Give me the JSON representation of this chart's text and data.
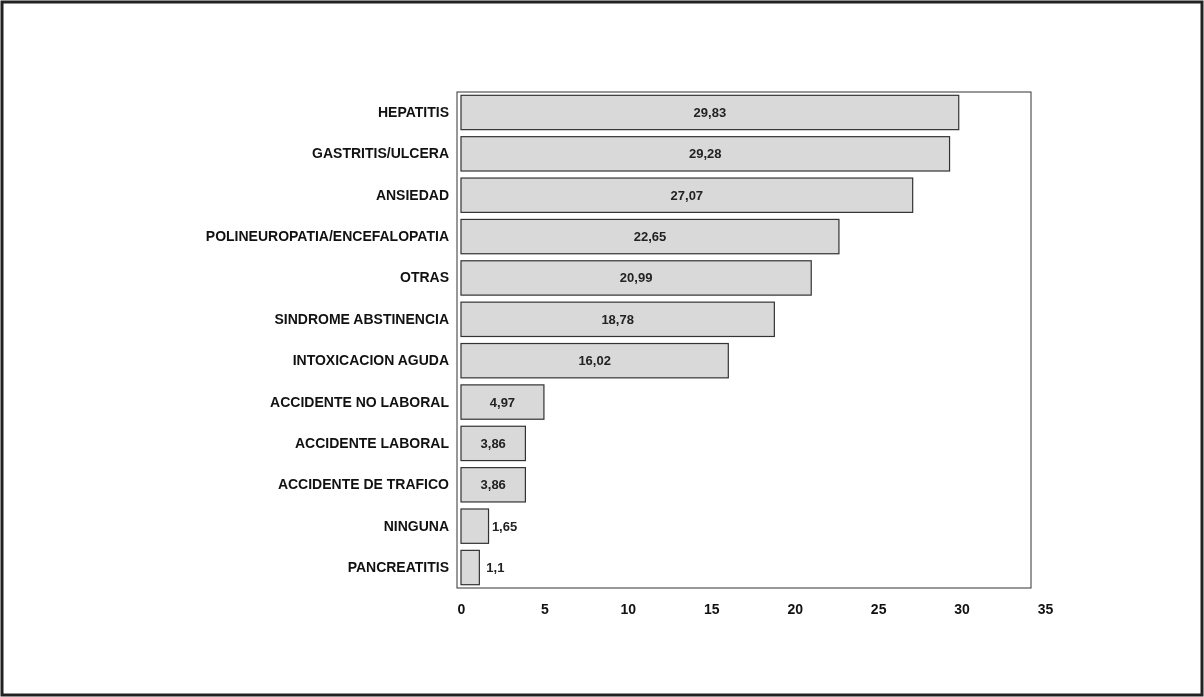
{
  "chart_data": {
    "type": "bar",
    "orientation": "horizontal",
    "categories": [
      "HEPATITIS",
      "GASTRITIS/ULCERA",
      "ANSIEDAD",
      "POLINEUROPATIA/ENCEFALOPATIA",
      "OTRAS",
      "SINDROME ABSTINENCIA",
      "INTOXICACION AGUDA",
      "ACCIDENTE NO LABORAL",
      "ACCIDENTE LABORAL",
      "ACCIDENTE DE TRAFICO",
      "NINGUNA",
      "PANCREATITIS"
    ],
    "values": [
      29.83,
      29.28,
      27.07,
      22.65,
      20.99,
      18.78,
      16.02,
      4.97,
      3.86,
      3.86,
      1.65,
      1.1
    ],
    "value_labels": [
      "29,83",
      "29,28",
      "27,07",
      "22,65",
      "20,99",
      "18,78",
      "16,02",
      "4,97",
      "3,86",
      "3,86",
      "1,65",
      "1,1"
    ],
    "color": "#d9d9d9",
    "xlim": [
      0,
      35
    ],
    "xticks": [
      0,
      5,
      10,
      15,
      20,
      25,
      30,
      35
    ],
    "grid": false
  }
}
